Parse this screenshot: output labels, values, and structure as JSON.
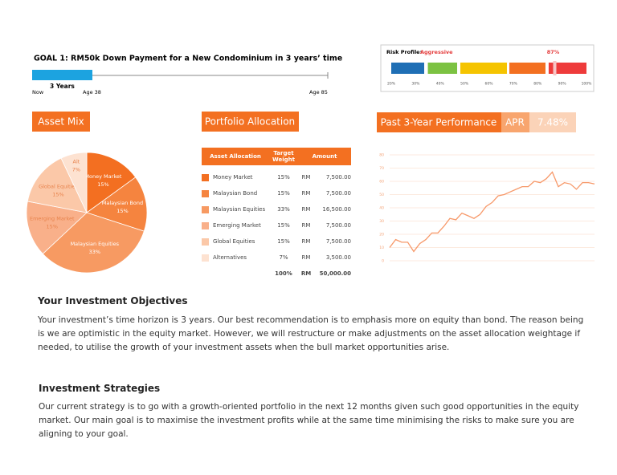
{
  "goal": {
    "title": "GOAL 1: RM50k Down Payment for a New Condominium in 3 years’ time",
    "duration": "3 Years",
    "start": "Now",
    "start_age": "Age 38",
    "end_age": "Age 85"
  },
  "risk_profile": {
    "label": "Risk Profile:",
    "level": "Aggressive",
    "value": 87,
    "value_label": "87%",
    "xlim": [
      20,
      100
    ],
    "xticks": [
      {
        "value": 20,
        "label": "20%"
      },
      {
        "value": 30,
        "label": "30%"
      },
      {
        "value": 40,
        "label": "40%"
      },
      {
        "value": 50,
        "label": "50%"
      },
      {
        "value": 60,
        "label": "60%"
      },
      {
        "value": 70,
        "label": "70%"
      },
      {
        "value": 80,
        "label": "80%"
      },
      {
        "value": 90,
        "label": "90%"
      },
      {
        "value": 100,
        "label": "100%"
      }
    ],
    "segments": [
      {
        "from": 20,
        "to": 33.5,
        "color": "#1f6fb5"
      },
      {
        "from": 35,
        "to": 47,
        "color": "#7cc242"
      },
      {
        "from": 48.3,
        "to": 67.4,
        "color": "#f5c400"
      },
      {
        "from": 68.4,
        "to": 83.2,
        "color": "#f37021"
      },
      {
        "from": 84.5,
        "to": 100,
        "color": "#ee3b3b"
      }
    ]
  },
  "sections": {
    "asset_mix": "Asset Mix",
    "portfolio_allocation": "Portfolio Allocation",
    "performance": "Past 3-Year Performance",
    "apr_label": "APR",
    "apr_value": "7.48%"
  },
  "table": {
    "header": [
      "Asset Allocation",
      "Target Weight",
      "Amount"
    ],
    "rows": [
      [
        "Money Market",
        "15%",
        "RM",
        "7,500.00"
      ],
      [
        "Malaysian Bond",
        "15%",
        "RM",
        "7,500.00"
      ],
      [
        "Malaysian Equities",
        "33%",
        "RM",
        "16,500.00"
      ],
      [
        "Emerging Market",
        "15%",
        "RM",
        "7,500.00"
      ],
      [
        "Global Equities",
        "15%",
        "RM",
        "7,500.00"
      ],
      [
        "Alternatives",
        "7%",
        "RM",
        "3,500.00"
      ]
    ],
    "total": [
      "100%",
      "RM",
      "50,000.00"
    ]
  },
  "chart_data": [
    {
      "type": "pie",
      "categories": [
        "Money Market",
        "Malaysian Bond",
        "Malaysian Equities",
        "Emerging Market",
        "Global Equities",
        "Alt"
      ],
      "values": [
        15,
        15,
        33,
        15,
        15,
        7
      ],
      "value_labels": [
        "15%",
        "15%",
        "33%",
        "15%",
        "15%",
        "7%"
      ],
      "colors": [
        "#f36f21",
        "#f5843f",
        "#f79a62",
        "#f9b08a",
        "#fbc8a8",
        "#fde2d1"
      ]
    },
    {
      "type": "line",
      "color": "#f7996a",
      "grid": true,
      "ylim": [
        0,
        80
      ],
      "yticks": [
        0,
        10,
        20,
        30,
        40,
        50,
        60,
        70,
        80
      ],
      "values": [
        10,
        16,
        14,
        14,
        7,
        13,
        16,
        21,
        21,
        26,
        32,
        31,
        36,
        34,
        32,
        35,
        41,
        44,
        49,
        50,
        52,
        54,
        56,
        56,
        60,
        59,
        62,
        67,
        56,
        59,
        58,
        54,
        59,
        59,
        58
      ]
    }
  ],
  "objectives": {
    "title": "Your Investment Objectives",
    "text": "Your investment’s time horizon is 3 years. Our best recommendation is to emphasis more on equity than bond. The reason being is we are optimistic in the equity market. However, we will restructure or make adjustments on the asset allocation weightage if needed, to utilise the growth of your investment assets when the bull market opportunities arise."
  },
  "strategies": {
    "title": "Investment Strategies",
    "text": "Our current strategy is to go with a growth-oriented portfolio in the next 12 months given such good opportunities in the equity market. Our main goal is to maximise the investment profits while at the same time minimising the risks to make sure you are aligning to your goal."
  }
}
